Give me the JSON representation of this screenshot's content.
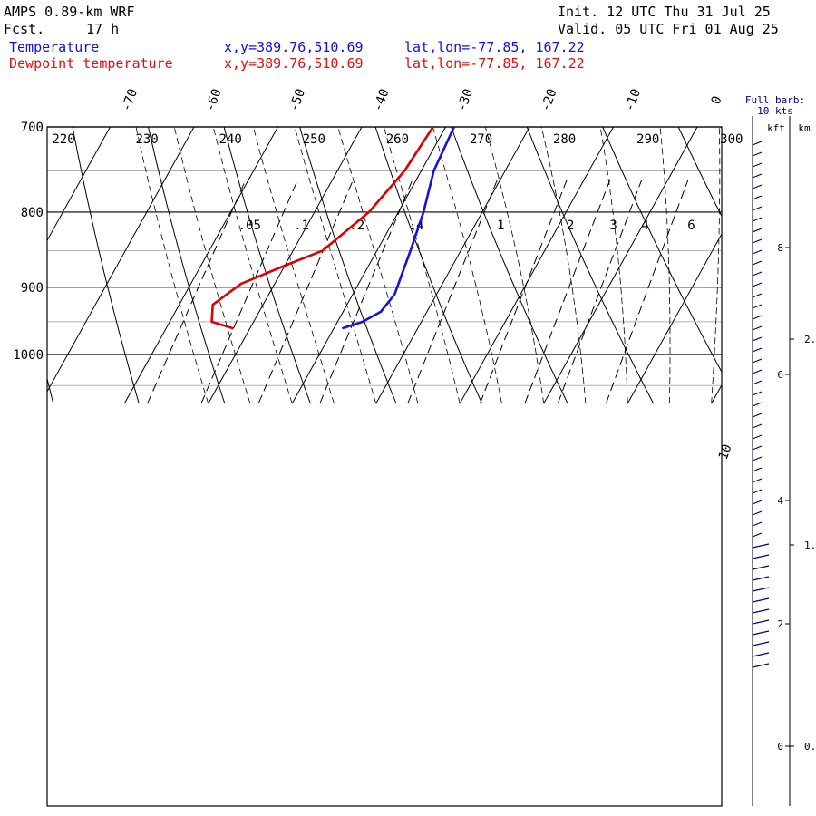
{
  "header": {
    "model": "AMPS 0.89-km WRF",
    "fcst_label": "Fcst.",
    "fcst_value": "17 h",
    "init": "Init. 12 UTC Thu 31 Jul 25",
    "valid": "Valid. 05 UTC Fri 01 Aug 25",
    "temp_label": "Temperature",
    "dew_label": "Dewpoint temperature",
    "xy": "x,y=389.76,510.69",
    "latlon": "lat,lon=-77.85, 167.22"
  },
  "colors": {
    "temperature": "#1414d8",
    "dewpoint": "#e00000",
    "grid": "#000000",
    "minor_grid": "#b0b0b0",
    "barb": "#000080"
  },
  "chart_data": {
    "type": "line",
    "title": "AMPS 0.89-km WRF",
    "yscale": "log-pressure",
    "ylim_hpa": [
      1040,
      700
    ],
    "ylabel_ticks": [
      "700",
      "800",
      "900",
      "1000"
    ],
    "temp_ticks": [
      "-70",
      "-60",
      "-50",
      "-40",
      "-30",
      "-20",
      "-10",
      "0",
      "10"
    ],
    "theta_labels": [
      "220",
      "230",
      "240",
      "250",
      "260",
      "270",
      "280",
      "290",
      "300"
    ],
    "mixing_ratio_labels": [
      ".05",
      ".1",
      ".2",
      ".4",
      "1",
      "2",
      "3",
      "4",
      "6"
    ],
    "series": [
      {
        "name": "Temperature",
        "points": [
          {
            "p": 700,
            "t": -29.0
          },
          {
            "p": 750,
            "t": -28.5
          },
          {
            "p": 800,
            "t": -27.0
          },
          {
            "p": 850,
            "t": -26.0
          },
          {
            "p": 880,
            "t": -25.5
          },
          {
            "p": 910,
            "t": -25.0
          },
          {
            "p": 935,
            "t": -25.5
          },
          {
            "p": 950,
            "t": -27.0
          },
          {
            "p": 960,
            "t": -29.0
          }
        ]
      },
      {
        "name": "Dewpoint temperature",
        "points": [
          {
            "p": 700,
            "t": -31.5
          },
          {
            "p": 750,
            "t": -32.0
          },
          {
            "p": 800,
            "t": -33.5
          },
          {
            "p": 850,
            "t": -36.5
          },
          {
            "p": 870,
            "t": -40.0
          },
          {
            "p": 895,
            "t": -44.0
          },
          {
            "p": 925,
            "t": -46.0
          },
          {
            "p": 950,
            "t": -45.0
          },
          {
            "p": 960,
            "t": -42.0
          }
        ]
      }
    ],
    "wind_panel": {
      "title_line1": "Full barb:",
      "title_line2": "10 kts",
      "kft_label": "kft",
      "km_label": "km",
      "kft_ticks": [
        "0",
        "2",
        "4",
        "6",
        "8"
      ],
      "km_ticks": [
        "0.",
        "1.",
        "2."
      ]
    }
  }
}
